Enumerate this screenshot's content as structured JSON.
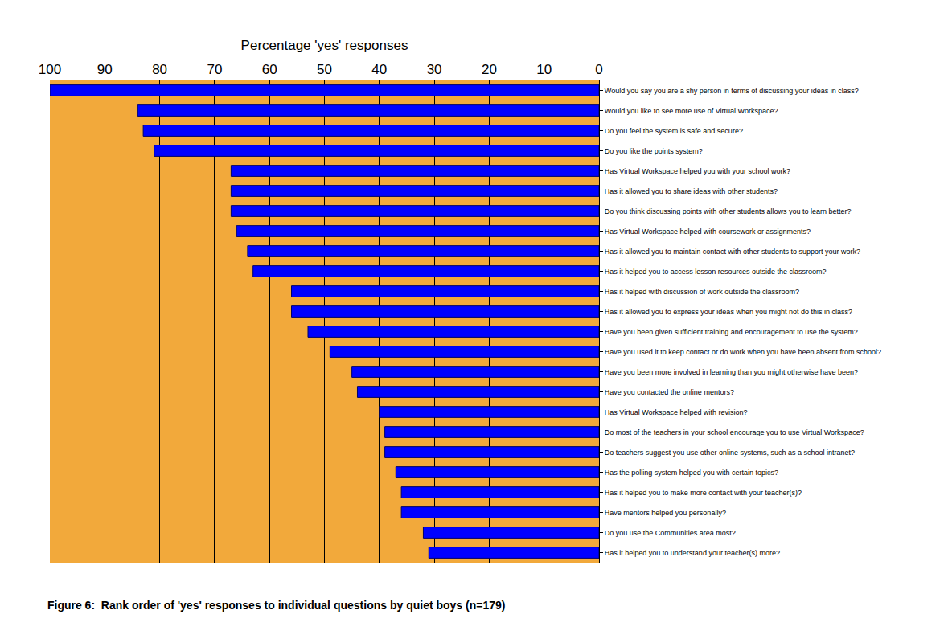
{
  "chart_data": {
    "type": "bar",
    "orientation": "horizontal",
    "title": "Figure 6:  Rank order of 'yes' responses to individual questions by quiet boys (n=179)",
    "x_label": "Percentage 'yes' responses",
    "categories": [
      "Would you say you are a shy person in terms of discussing your ideas in class?",
      "Would you like to see more use of Virtual Workspace?",
      "Do you feel the system is safe and secure?",
      "Do you like the points system?",
      "Has Virtual Workspace helped you with your school work?",
      "Has it allowed you to share ideas with other students?",
      "Do you think discussing points with other students allows you to learn better?",
      "Has Virtual Workspace helped with coursework or assignments?",
      "Has it allowed you to maintain contact with other students to support your work?",
      "Has it helped you to access lesson resources outside the classroom?",
      "Has it helped with discussion of work outside the classroom?",
      "Has it allowed you to express your ideas when you might not do this in class?",
      "Have you been given sufficient training and encouragement to use the system?",
      "Have you used it to keep contact or do work when you have been absent from school?",
      "Have you been more involved in learning than you might otherwise have been?",
      "Have you contacted the online mentors?",
      "Has Virtual Workspace helped with revision?",
      "Do most of the teachers in your school encourage you to use Virtual Workspace?",
      "Do teachers suggest you use other online systems, such as a school intranet?",
      "Has the polling system helped you with certain topics?",
      "Has it helped you to make more contact with your teacher(s)?",
      "Have mentors helped you personally?",
      "Do you use the Communities area most?",
      "Has it helped you to understand your teacher(s) more?"
    ],
    "values": [
      100,
      84,
      83,
      81,
      67,
      67,
      67,
      66,
      64,
      63,
      56,
      56,
      53,
      49,
      45,
      44,
      40,
      39,
      39,
      37,
      36,
      36,
      32,
      31
    ],
    "color": "#0000ff",
    "xlim": [
      100,
      0
    ],
    "xticks": [
      0,
      10,
      20,
      30,
      40,
      50,
      60,
      70,
      80,
      90,
      100
    ],
    "grid": true
  }
}
